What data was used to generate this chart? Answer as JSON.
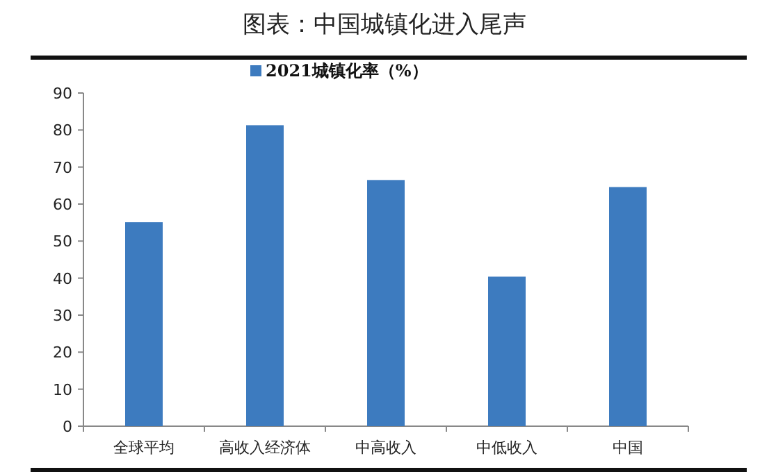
{
  "chart_data": {
    "type": "bar",
    "title": "图表：中国城镇化进入尾声",
    "categories": [
      "全球平均",
      "高收入经济体",
      "中高收入",
      "中低收入",
      "中国"
    ],
    "series": [
      {
        "name": "2021城镇化率（%）",
        "color": "#3d7bbf",
        "values": [
          55.1,
          81.3,
          66.5,
          40.4,
          64.6
        ]
      }
    ],
    "ylim": [
      0,
      90
    ],
    "yticks": [
      0,
      10,
      20,
      30,
      40,
      50,
      60,
      70,
      80,
      90
    ],
    "grid": false,
    "legend": "top"
  }
}
